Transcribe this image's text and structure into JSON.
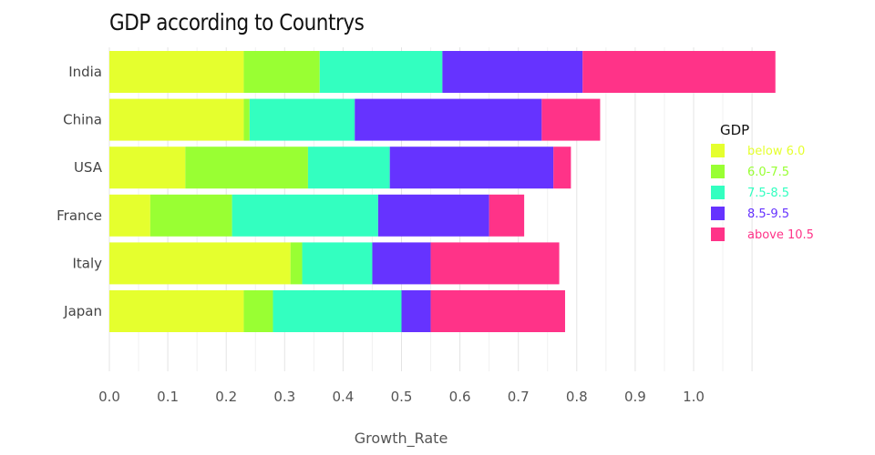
{
  "chart_data": {
    "type": "bar",
    "orientation": "horizontal",
    "stacked": true,
    "title": "GDP according to Countrys",
    "xlabel": "Growth_Rate",
    "ylabel": "",
    "xlim": [
      0,
      1.12
    ],
    "xticks": [
      "0.0",
      "0.1",
      "0.2",
      "0.3",
      "0.4",
      "0.5",
      "0.6",
      "0.7",
      "0.8",
      "0.9",
      "1.0"
    ],
    "categories": [
      "India",
      "China",
      "USA",
      "France",
      "Italy",
      "Japan"
    ],
    "legend_title": "GDP",
    "legend_position": "right",
    "grid": true,
    "series": [
      {
        "name": "below 6.0",
        "color": "#e5ff2e",
        "values": [
          0.23,
          0.23,
          0.13,
          0.07,
          0.31,
          0.23
        ]
      },
      {
        "name": "6.0-7.5",
        "color": "#99ff33",
        "values": [
          0.13,
          0.01,
          0.21,
          0.14,
          0.02,
          0.05
        ]
      },
      {
        "name": "7.5-8.5",
        "color": "#33ffc0",
        "values": [
          0.21,
          0.18,
          0.14,
          0.25,
          0.12,
          0.22
        ]
      },
      {
        "name": "8.5-9.5",
        "color": "#6633ff",
        "values": [
          0.24,
          0.32,
          0.28,
          0.19,
          0.1,
          0.05
        ]
      },
      {
        "name": "above 10.5",
        "color": "#ff3388",
        "values": [
          0.33,
          0.1,
          0.03,
          0.06,
          0.22,
          0.23
        ]
      }
    ]
  }
}
